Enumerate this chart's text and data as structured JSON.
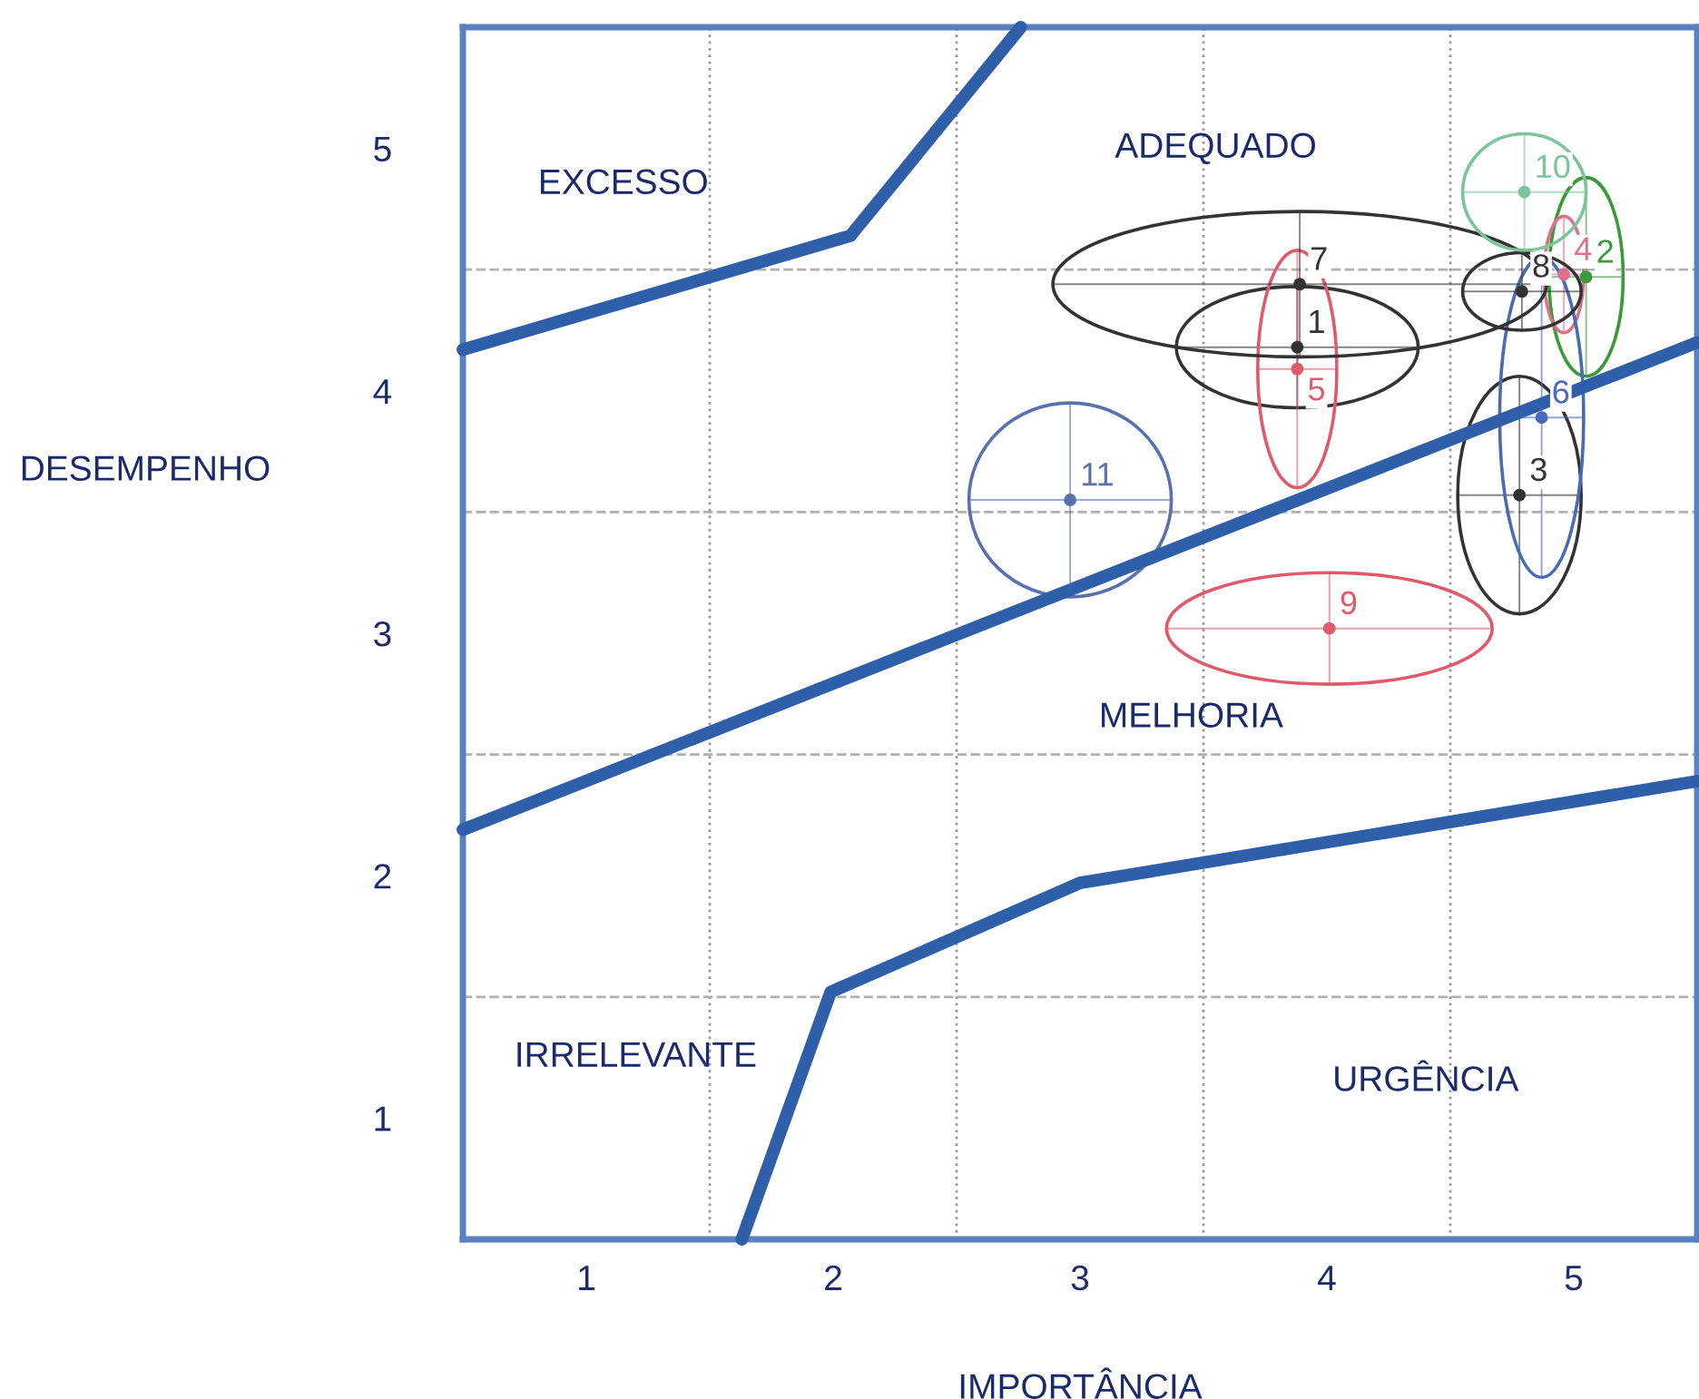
{
  "chart_data": {
    "type": "scatter",
    "xlabel": "IMPORTÂNCIA",
    "ylabel": "DESEMPENHO",
    "xlim": [
      0.5,
      5.5
    ],
    "ylim": [
      0.5,
      5.5
    ],
    "xticks": [
      1,
      2,
      3,
      4,
      5
    ],
    "yticks": [
      1,
      2,
      3,
      4,
      5
    ],
    "grid": false,
    "marker": "circle",
    "series": [
      {
        "name": "1",
        "color": "#333333",
        "x": [
          3.88
        ],
        "values": [
          4.18
        ],
        "xerrors": [
          0.49
        ],
        "errors": [
          0.25
        ]
      },
      {
        "name": "2",
        "color": "#3a9a3a",
        "x": [
          5.05
        ],
        "values": [
          4.47
        ],
        "xerrors": [
          0.15
        ],
        "errors": [
          0.41
        ]
      },
      {
        "name": "3",
        "color": "#333333",
        "x": [
          4.78
        ],
        "values": [
          3.57
        ],
        "xerrors": [
          0.25
        ],
        "errors": [
          0.49
        ]
      },
      {
        "name": "4",
        "color": "#e0708a",
        "x": [
          4.96
        ],
        "values": [
          4.48
        ],
        "xerrors": [
          0.08
        ],
        "errors": [
          0.24
        ]
      },
      {
        "name": "5",
        "color": "#e05a6a",
        "x": [
          3.88
        ],
        "values": [
          4.09
        ],
        "xerrors": [
          0.16
        ],
        "errors": [
          0.49
        ]
      },
      {
        "name": "6",
        "color": "#4a6ab8",
        "x": [
          4.87
        ],
        "values": [
          3.89
        ],
        "xerrors": [
          0.17
        ],
        "errors": [
          0.66
        ]
      },
      {
        "name": "7",
        "color": "#333333",
        "x": [
          3.89
        ],
        "values": [
          4.44
        ],
        "xerrors": [
          1.0
        ],
        "errors": [
          0.3
        ]
      },
      {
        "name": "8",
        "color": "#333333",
        "x": [
          4.79
        ],
        "values": [
          4.41
        ],
        "xerrors": [
          0.24
        ],
        "errors": [
          0.16
        ]
      },
      {
        "name": "9",
        "color": "#e05a6a",
        "x": [
          4.01
        ],
        "values": [
          3.02
        ],
        "xerrors": [
          0.66
        ],
        "errors": [
          0.23
        ]
      },
      {
        "name": "10",
        "color": "#7cc49a",
        "x": [
          4.8
        ],
        "values": [
          4.82
        ],
        "xerrors": [
          0.25
        ],
        "errors": [
          0.24
        ]
      },
      {
        "name": "11",
        "color": "#5a70b0",
        "x": [
          2.96
        ],
        "values": [
          3.55
        ],
        "xerrors": [
          0.41
        ],
        "errors": [
          0.4
        ]
      },
      {
        "type": "line",
        "marker": "none",
        "color": "#2e5fa8",
        "x": [
          0.5,
          2.07,
          2.76
        ],
        "values": [
          4.17,
          4.64,
          5.5
        ]
      },
      {
        "type": "line",
        "marker": "none",
        "color": "#2e5fa8",
        "x": [
          0.5,
          5.5
        ],
        "values": [
          2.19,
          4.2
        ]
      },
      {
        "type": "line",
        "marker": "none",
        "color": "#2e5fa8",
        "x": [
          1.63,
          1.99,
          3.0,
          5.5
        ],
        "values": [
          0.5,
          1.52,
          1.97,
          2.39
        ]
      }
    ],
    "ref_lines": [
      {
        "axis": "x",
        "value": 1.5,
        "color": "#999999",
        "line_style": "dotted"
      },
      {
        "axis": "x",
        "value": 2.5,
        "color": "#999999",
        "line_style": "dotted"
      },
      {
        "axis": "x",
        "value": 3.5,
        "color": "#999999",
        "line_style": "dotted"
      },
      {
        "axis": "x",
        "value": 4.5,
        "color": "#999999",
        "line_style": "dotted"
      },
      {
        "axis": "y",
        "value": 1.5,
        "color": "#b0b0b0",
        "line_style": "dashed"
      },
      {
        "axis": "y",
        "value": 2.5,
        "color": "#b0b0b0",
        "line_style": "dashed"
      },
      {
        "axis": "y",
        "value": 3.5,
        "color": "#b0b0b0",
        "line_style": "dashed"
      },
      {
        "axis": "y",
        "value": 4.5,
        "color": "#b0b0b0",
        "line_style": "dashed"
      }
    ],
    "annotations": [
      "EXCESSO",
      "ADEQUADO",
      "MELHORIA",
      "IRRELEVANTE",
      "URGÊNCIA"
    ]
  }
}
